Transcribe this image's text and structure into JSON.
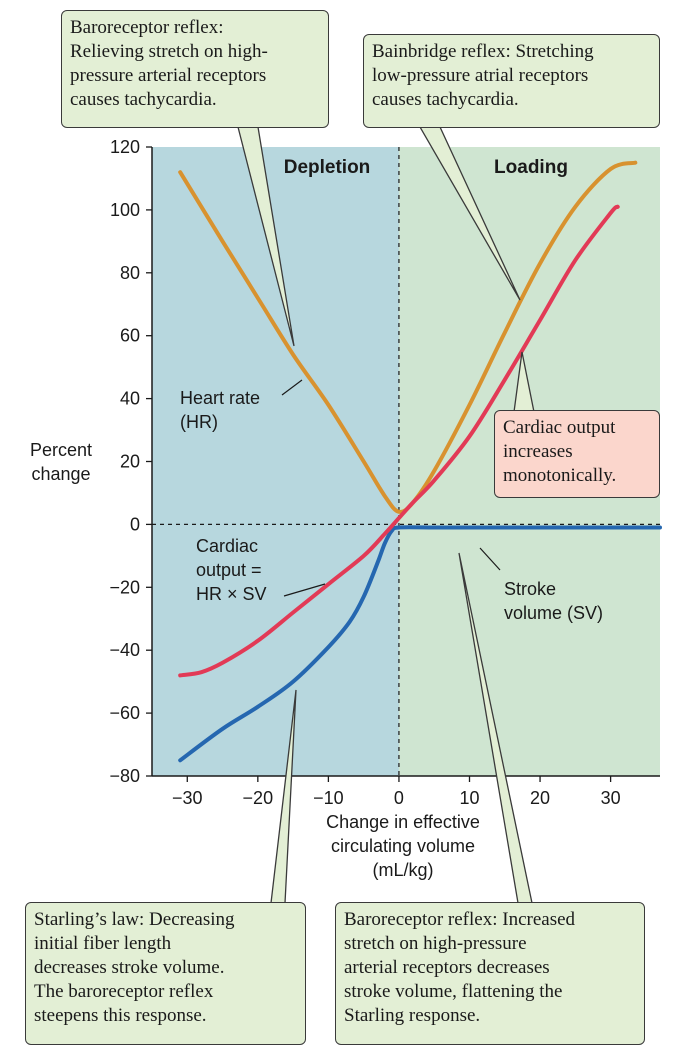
{
  "chart_data": {
    "type": "line",
    "ylabel": "Percent\nchange",
    "xlabel": "Change in effective\ncirculating volume\n(mL/kg)",
    "xlim": [
      -35,
      37
    ],
    "ylim": [
      -80,
      120
    ],
    "xticks": [
      -30,
      -20,
      -10,
      0,
      10,
      20,
      30
    ],
    "yticks": [
      120,
      100,
      80,
      60,
      40,
      20,
      0,
      -20,
      -40,
      -60,
      -80
    ],
    "regions": [
      {
        "label": "Depletion",
        "from": -35,
        "to": 0,
        "color": "#b7d7de"
      },
      {
        "label": "Loading",
        "from": 0,
        "to": 37,
        "color": "#cfe5d1"
      }
    ],
    "series": [
      {
        "key": "hr",
        "name": "Heart rate\n(HR)",
        "color": "#d8922f",
        "x": [
          -31,
          -25,
          -20,
          -15,
          -10,
          -5,
          -2,
          0,
          2,
          5,
          10,
          15,
          20,
          25,
          30,
          33.5
        ],
        "y": [
          112,
          90,
          72,
          54,
          38,
          20,
          9,
          4,
          7,
          17,
          38,
          61,
          83,
          101,
          113,
          115
        ]
      },
      {
        "key": "co",
        "name": "Cardiac\noutput =\nHR × SV",
        "color": "#e23a56",
        "x": [
          -31,
          -28,
          -25,
          -20,
          -15,
          -10,
          -5,
          -2,
          0,
          2,
          5,
          10,
          15,
          20,
          25,
          30,
          31
        ],
        "y": [
          -48,
          -47,
          -44,
          -37,
          -28,
          -19,
          -10,
          -3,
          2,
          7,
          14,
          28,
          46,
          65,
          84,
          99,
          101
        ]
      },
      {
        "key": "sv",
        "name": "Stroke\nvolume (SV)",
        "color": "#2567b0",
        "x": [
          -31,
          -25,
          -20,
          -15,
          -10,
          -7,
          -5,
          -3,
          -2,
          -1,
          0,
          5,
          10,
          20,
          30,
          37
        ],
        "y": [
          -75,
          -65,
          -58,
          -50,
          -39,
          -31,
          -23,
          -12,
          -6,
          -2,
          -1,
          -1,
          -1,
          -1,
          -1,
          -1
        ]
      }
    ],
    "annotations": [
      {
        "key": "baro_top",
        "text": "Baroreceptor reflex:\nRelieving stretch on high-\npressure arterial receptors\ncauses tachycardia."
      },
      {
        "key": "bainbridge",
        "text": "Bainbridge reflex: Stretching\nlow-pressure atrial receptors\ncauses tachycardia."
      },
      {
        "key": "co_inc",
        "text": "Cardiac output\nincreases\nmonotonically."
      },
      {
        "key": "starling",
        "text": "Starling’s law: Decreasing\ninitial fiber length\ndecreases stroke volume.\nThe baroreceptor reflex\nsteepens this response."
      },
      {
        "key": "baro_bottom",
        "text": "Baroreceptor reflex: Increased\nstretch on high-pressure\narterial receptors decreases\nstroke volume, flattening the\nStarling response."
      }
    ]
  }
}
